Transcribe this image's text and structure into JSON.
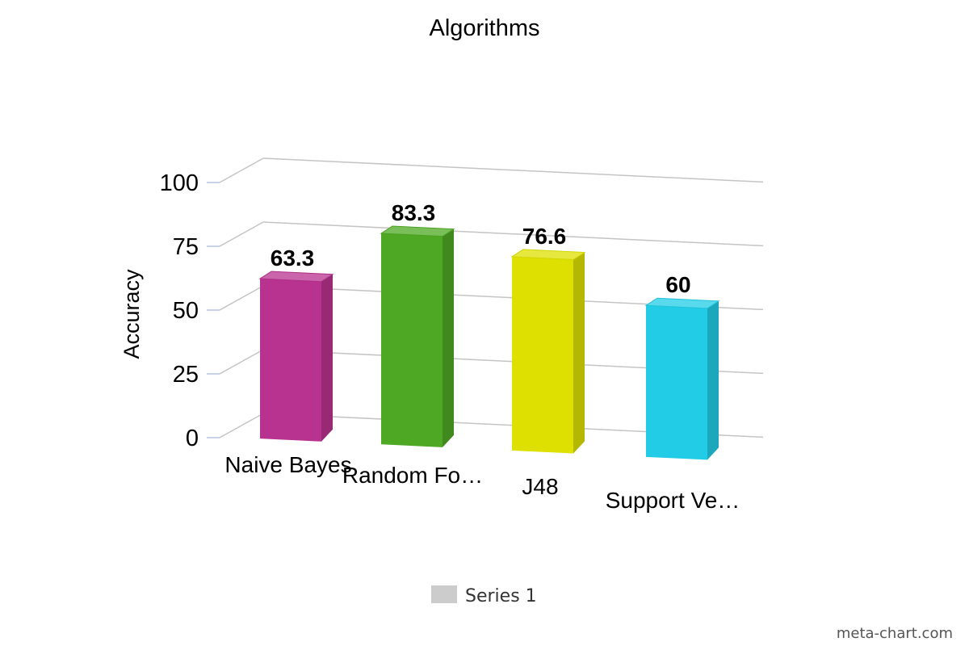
{
  "chart_data": {
    "type": "bar",
    "title": "Algorithms",
    "xlabel": "",
    "ylabel": "Accuracy",
    "categories": [
      "Naive Bayes",
      "Random Fo…",
      "J48",
      "Support Ve…"
    ],
    "series": [
      {
        "name": "Series 1",
        "values": [
          63.3,
          83.3,
          76.6,
          60
        ],
        "colors": [
          "#b8328f",
          "#4ea823",
          "#dde000",
          "#22cce6"
        ]
      }
    ],
    "yticks": [
      0,
      25,
      50,
      75,
      100
    ],
    "ytick_labels": [
      "0",
      "25",
      "50",
      "75",
      "100"
    ],
    "data_labels": [
      "63.3",
      "83.3",
      "76.6",
      "60"
    ],
    "ylim": [
      0,
      100
    ],
    "grid": true,
    "perspective": "3d",
    "legend": {
      "position": "bottom-center",
      "swatch_color": "#cccccc"
    }
  },
  "watermark": "meta-chart.com"
}
